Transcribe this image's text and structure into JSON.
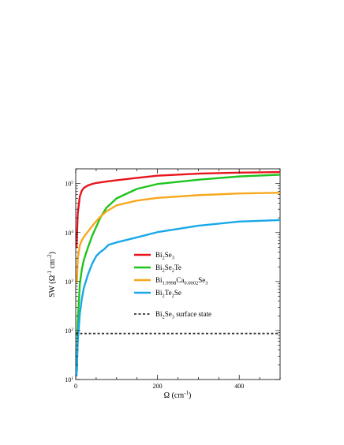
{
  "chart_data": {
    "type": "line",
    "title": "",
    "xlabel": "Ω (cm",
    "xlabel_sup": "-1",
    "xlabel_end": ")",
    "ylabel": "SW (Ω",
    "ylabel_sup1": "-1",
    "ylabel_mid": " cm",
    "ylabel_sup2": "-2",
    "ylabel_end": ")",
    "xlim": [
      0,
      500
    ],
    "ylim": [
      10,
      200000
    ],
    "yscale": "log",
    "grid": false,
    "legend_position": "center",
    "x_ticks": [
      0,
      200,
      400
    ],
    "x_tick_labels": [
      "0",
      "200",
      "400"
    ],
    "y_ticks": [
      10,
      100,
      1000,
      10000,
      100000
    ],
    "y_tick_labels": [
      {
        "base": "10",
        "exp": "1"
      },
      {
        "base": "10",
        "exp": "2"
      },
      {
        "base": "10",
        "exp": "3"
      },
      {
        "base": "10",
        "exp": "4"
      },
      {
        "base": "10",
        "exp": "5"
      }
    ],
    "series": [
      {
        "key": "bi2se3",
        "legend": [
          {
            "t": "Bi"
          },
          {
            "t": "2",
            "sub": true
          },
          {
            "t": "Se"
          },
          {
            "t": "3",
            "sub": true
          }
        ],
        "color": "#e8141c",
        "style": "solid",
        "x": [
          2,
          5,
          10,
          15,
          20,
          30,
          40,
          50,
          75,
          100,
          150,
          200,
          300,
          400,
          500
        ],
        "y": [
          5000,
          25000,
          55000,
          72000,
          82000,
          92000,
          98000,
          103000,
          110000,
          117000,
          131000,
          145000,
          160000,
          167000,
          172000
        ]
      },
      {
        "key": "bi2se2te",
        "legend": [
          {
            "t": "Bi"
          },
          {
            "t": "2",
            "sub": true
          },
          {
            "t": "Se"
          },
          {
            "t": "2",
            "sub": true
          },
          {
            "t": "Te"
          }
        ],
        "color": "#1ec41e",
        "style": "solid",
        "x": [
          3,
          5,
          10,
          15,
          20,
          30,
          40,
          50,
          60,
          75,
          100,
          150,
          200,
          300,
          400,
          500
        ],
        "y": [
          15,
          150,
          900,
          1800,
          2800,
          5000,
          8500,
          13000,
          20000,
          32000,
          50000,
          78000,
          98000,
          120000,
          140000,
          152000
        ]
      },
      {
        "key": "bi1998ca",
        "legend": [
          {
            "t": "Bi"
          },
          {
            "t": "1.9998",
            "sub": true
          },
          {
            "t": "Ca"
          },
          {
            "t": "0.0002",
            "sub": true
          },
          {
            "t": "Se"
          },
          {
            "t": "3",
            "sub": true
          }
        ],
        "color": "#f8a81c",
        "style": "solid",
        "x": [
          3,
          5,
          10,
          15,
          20,
          30,
          40,
          50,
          60,
          75,
          100,
          150,
          200,
          300,
          400,
          500
        ],
        "y": [
          1000,
          3000,
          5500,
          7000,
          8200,
          10500,
          13500,
          17000,
          21000,
          27000,
          36000,
          45000,
          51000,
          58000,
          63000,
          65000
        ]
      },
      {
        "key": "bi2te2se",
        "legend": [
          {
            "t": "Bi"
          },
          {
            "t": "2",
            "sub": true
          },
          {
            "t": "Te"
          },
          {
            "t": "2",
            "sub": true
          },
          {
            "t": "Se"
          }
        ],
        "color": "#18a8e8",
        "style": "solid",
        "x": [
          2,
          5,
          10,
          15,
          20,
          30,
          40,
          50,
          60,
          70,
          80,
          100,
          150,
          200,
          300,
          400,
          500
        ],
        "y": [
          12,
          60,
          220,
          450,
          750,
          1400,
          2300,
          3300,
          4000,
          4600,
          5600,
          6300,
          8000,
          10200,
          13800,
          16800,
          18000
        ]
      },
      {
        "key": "surface",
        "legend": [
          {
            "t": "Bi"
          },
          {
            "t": "2",
            "sub": true
          },
          {
            "t": "Se"
          },
          {
            "t": "3",
            "sub": true
          },
          {
            "t": " surface state"
          }
        ],
        "color": "#333333",
        "style": "dashed",
        "x": [
          0,
          500
        ],
        "y": [
          87,
          87
        ]
      }
    ]
  }
}
